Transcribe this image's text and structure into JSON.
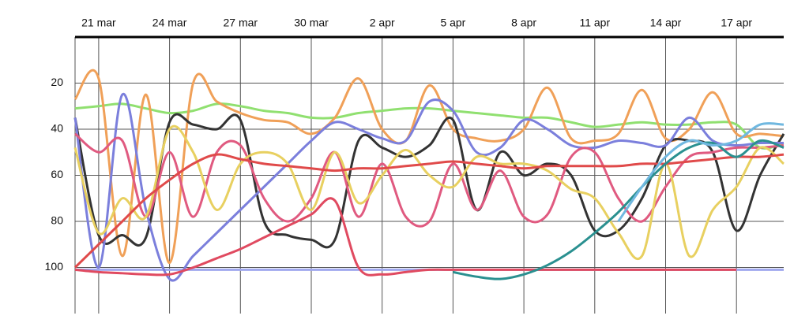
{
  "chart_data": {
    "type": "line",
    "categories": [
      null,
      "21 mar",
      null,
      null,
      "24 mar",
      null,
      null,
      "27 mar",
      null,
      null,
      "30 mar",
      null,
      null,
      "2 apr",
      null,
      null,
      "5 apr",
      null,
      null,
      "8 apr",
      null,
      null,
      "11 apr",
      null,
      null,
      "14 apr",
      null,
      null,
      "17 apr",
      null,
      null
    ],
    "ylim": [
      0,
      120
    ],
    "y_inverted": true,
    "yticks": [
      20,
      40,
      60,
      80,
      100
    ],
    "grid": true,
    "series": [
      {
        "color": "#a0a8ee",
        "values": [
          101,
          101,
          101,
          101,
          101,
          101,
          101,
          101,
          101,
          101,
          101,
          101,
          101,
          101,
          101,
          101,
          101,
          101,
          101,
          101,
          101,
          101,
          101,
          101,
          101,
          101,
          101,
          101,
          101,
          101,
          101
        ]
      },
      {
        "color": "#90e070",
        "values": [
          31,
          30,
          29,
          31,
          33,
          32,
          29,
          30,
          32,
          33,
          35,
          35,
          33,
          32,
          31,
          31,
          32,
          33,
          34,
          35,
          35,
          37,
          39,
          38,
          37,
          38,
          38,
          37,
          38,
          48,
          46
        ]
      },
      {
        "color": "#f0a058",
        "values": [
          27,
          18,
          95,
          25,
          98,
          20,
          28,
          33,
          36,
          37,
          42,
          35,
          18,
          40,
          45,
          21,
          40,
          44,
          45,
          40,
          22,
          44,
          45,
          42,
          23,
          44,
          40,
          24,
          42,
          42,
          43
        ]
      },
      {
        "color": "#333333",
        "values": [
          35,
          86,
          86,
          87,
          37,
          38,
          40,
          36,
          80,
          86,
          88,
          88,
          45,
          48,
          52,
          47,
          36,
          75,
          50,
          60,
          55,
          60,
          84,
          84,
          70,
          47,
          45,
          50,
          84,
          60,
          42
        ]
      },
      {
        "color": "#7b7fdc",
        "values": [
          35,
          100,
          25,
          75,
          105,
          95,
          85,
          75,
          65,
          55,
          45,
          37,
          40,
          44,
          45,
          28,
          32,
          50,
          48,
          36,
          40,
          47,
          48,
          45,
          46,
          47,
          35,
          45,
          47,
          46,
          46
        ]
      },
      {
        "color": "#e05a80",
        "values": [
          42,
          50,
          45,
          78,
          50,
          78,
          50,
          47,
          70,
          80,
          70,
          50,
          78,
          55,
          78,
          80,
          55,
          75,
          58,
          78,
          77,
          52,
          50,
          70,
          80,
          65,
          52,
          50,
          48,
          48,
          47
        ]
      },
      {
        "color": "#e8d060",
        "values": [
          48,
          85,
          70,
          78,
          40,
          50,
          75,
          55,
          50,
          55,
          75,
          50,
          72,
          60,
          49,
          60,
          65,
          52,
          55,
          55,
          58,
          66,
          70,
          85,
          95,
          55,
          95,
          75,
          65,
          48,
          55
        ]
      },
      {
        "color": "#e04a4a",
        "values": [
          100,
          90,
          80,
          70,
          62,
          55,
          51,
          53,
          55,
          56,
          57,
          58,
          57,
          57,
          56,
          55,
          54,
          55,
          56,
          57,
          56,
          56,
          56,
          56,
          55,
          55,
          54,
          53,
          52,
          52,
          51
        ]
      },
      {
        "color": "#e04a60",
        "values": [
          101,
          102,
          102.5,
          103,
          103,
          100,
          96,
          92,
          87,
          82,
          77,
          71,
          100,
          103,
          102,
          101,
          101,
          101,
          101,
          101,
          101,
          101,
          101,
          101,
          101,
          101,
          101,
          101,
          101,
          null,
          null
        ]
      },
      {
        "color": "#2a9090",
        "values": [
          null,
          null,
          null,
          null,
          null,
          null,
          null,
          null,
          null,
          null,
          null,
          null,
          null,
          null,
          null,
          null,
          102,
          104,
          105,
          103,
          99,
          93,
          85,
          76,
          65,
          55,
          48,
          46,
          52,
          45,
          48
        ]
      },
      {
        "color": "#70b8e0",
        "values": [
          null,
          null,
          null,
          null,
          null,
          null,
          null,
          null,
          null,
          null,
          null,
          null,
          null,
          null,
          null,
          null,
          null,
          null,
          null,
          null,
          null,
          null,
          null,
          80,
          65,
          52,
          45,
          47,
          45,
          38,
          38
        ]
      }
    ]
  }
}
